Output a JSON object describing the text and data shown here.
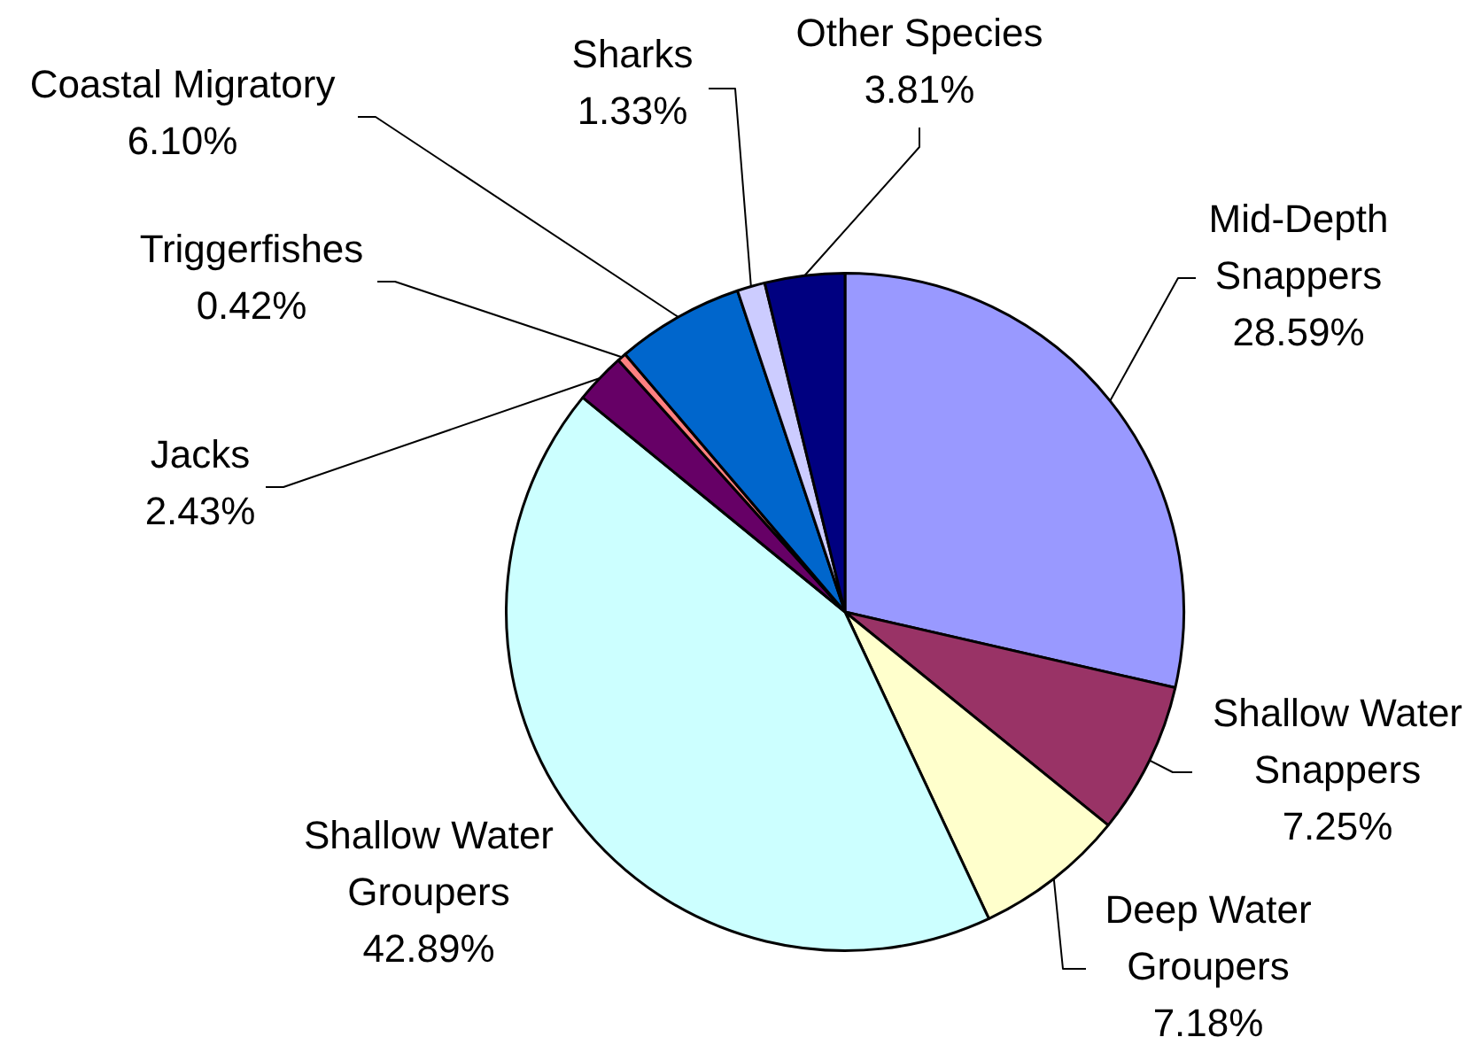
{
  "chart_data": {
    "type": "pie",
    "categories": [
      "Mid-Depth Snappers",
      "Shallow Water Snappers",
      "Deep Water Groupers",
      "Shallow Water Groupers",
      "Jacks",
      "Triggerfishes",
      "Coastal Migratory",
      "Sharks",
      "Other Species"
    ],
    "values": [
      28.59,
      7.25,
      7.18,
      42.89,
      2.43,
      0.42,
      6.1,
      1.33,
      3.81
    ],
    "value_labels": [
      "28.59%",
      "7.25%",
      "7.18%",
      "42.89%",
      "2.43%",
      "0.42%",
      "6.10%",
      "1.33%",
      "3.81%"
    ],
    "colors": [
      "#9999ff",
      "#993366",
      "#ffffcc",
      "#ccffff",
      "#660066",
      "#ff8080",
      "#0066cc",
      "#ccccff",
      "#000080"
    ]
  }
}
